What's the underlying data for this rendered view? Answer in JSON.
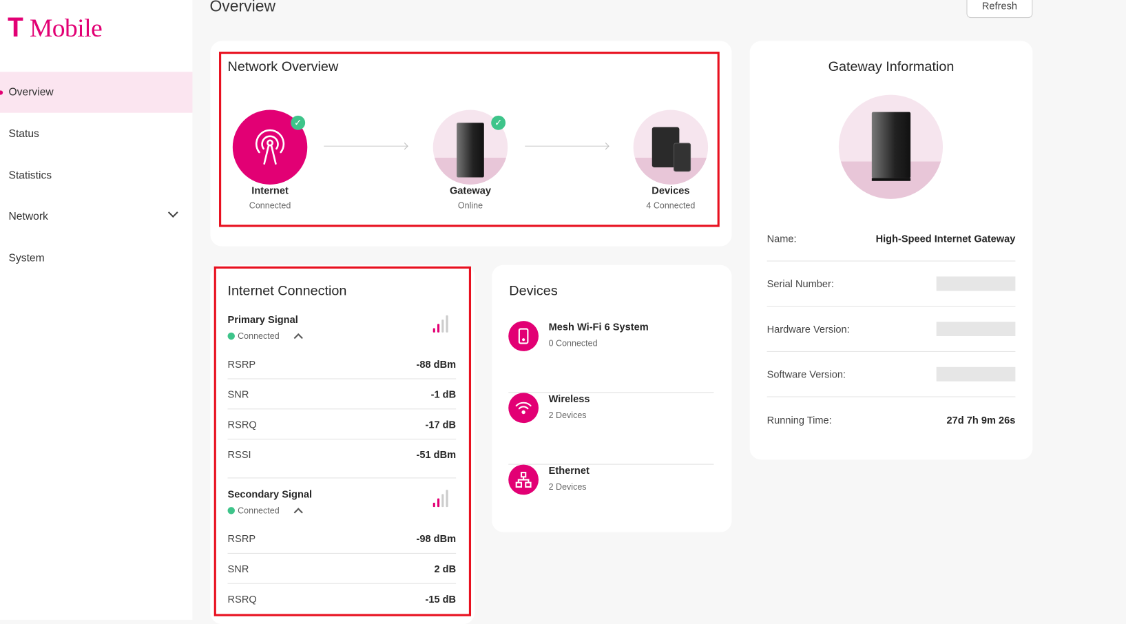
{
  "brand": {
    "logo": "T Mobile",
    "color": "#e20074"
  },
  "sidebar": {
    "items": [
      {
        "label": "Overview",
        "active": true
      },
      {
        "label": "Status"
      },
      {
        "label": "Statistics"
      },
      {
        "label": "Network",
        "expandable": true
      },
      {
        "label": "System"
      }
    ]
  },
  "header": {
    "title": "Overview",
    "refresh_label": "Refresh"
  },
  "network_overview": {
    "title": "Network Overview",
    "nodes": [
      {
        "label": "Internet",
        "status": "Connected",
        "icon": "antenna-icon",
        "ok": true
      },
      {
        "label": "Gateway",
        "status": "Online",
        "icon": "gateway-icon",
        "ok": true
      },
      {
        "label": "Devices",
        "status": "4 Connected",
        "icon": "devices-icon"
      }
    ]
  },
  "internet_connection": {
    "title": "Internet Connection",
    "signals": [
      {
        "title": "Primary Signal",
        "status": "Connected",
        "bars_active": 2,
        "bars_total": 4,
        "metrics": [
          {
            "k": "RSRP",
            "v": "-88 dBm"
          },
          {
            "k": "SNR",
            "v": "-1 dB"
          },
          {
            "k": "RSRQ",
            "v": "-17 dB"
          },
          {
            "k": "RSSI",
            "v": "-51 dBm"
          }
        ]
      },
      {
        "title": "Secondary Signal",
        "status": "Connected",
        "bars_active": 2,
        "bars_total": 4,
        "metrics": [
          {
            "k": "RSRP",
            "v": "-98 dBm"
          },
          {
            "k": "SNR",
            "v": "2 dB"
          },
          {
            "k": "RSRQ",
            "v": "-15 dB"
          }
        ]
      }
    ]
  },
  "devices": {
    "title": "Devices",
    "items": [
      {
        "name": "Mesh Wi-Fi 6 System",
        "sub": "0 Connected",
        "icon": "mesh-device-icon"
      },
      {
        "name": "Wireless",
        "sub": "2 Devices",
        "icon": "wifi-icon"
      },
      {
        "name": "Ethernet",
        "sub": "2 Devices",
        "icon": "ethernet-network-icon"
      }
    ]
  },
  "gateway_info": {
    "title": "Gateway Information",
    "rows": [
      {
        "k": "Name:",
        "v": "High-Speed Internet Gateway"
      },
      {
        "k": "Serial Number:",
        "redacted": true
      },
      {
        "k": "Hardware Version:",
        "redacted": true
      },
      {
        "k": "Software Version:",
        "redacted": true
      },
      {
        "k": "Running Time:",
        "v": "27d 7h 9m 26s"
      }
    ]
  }
}
